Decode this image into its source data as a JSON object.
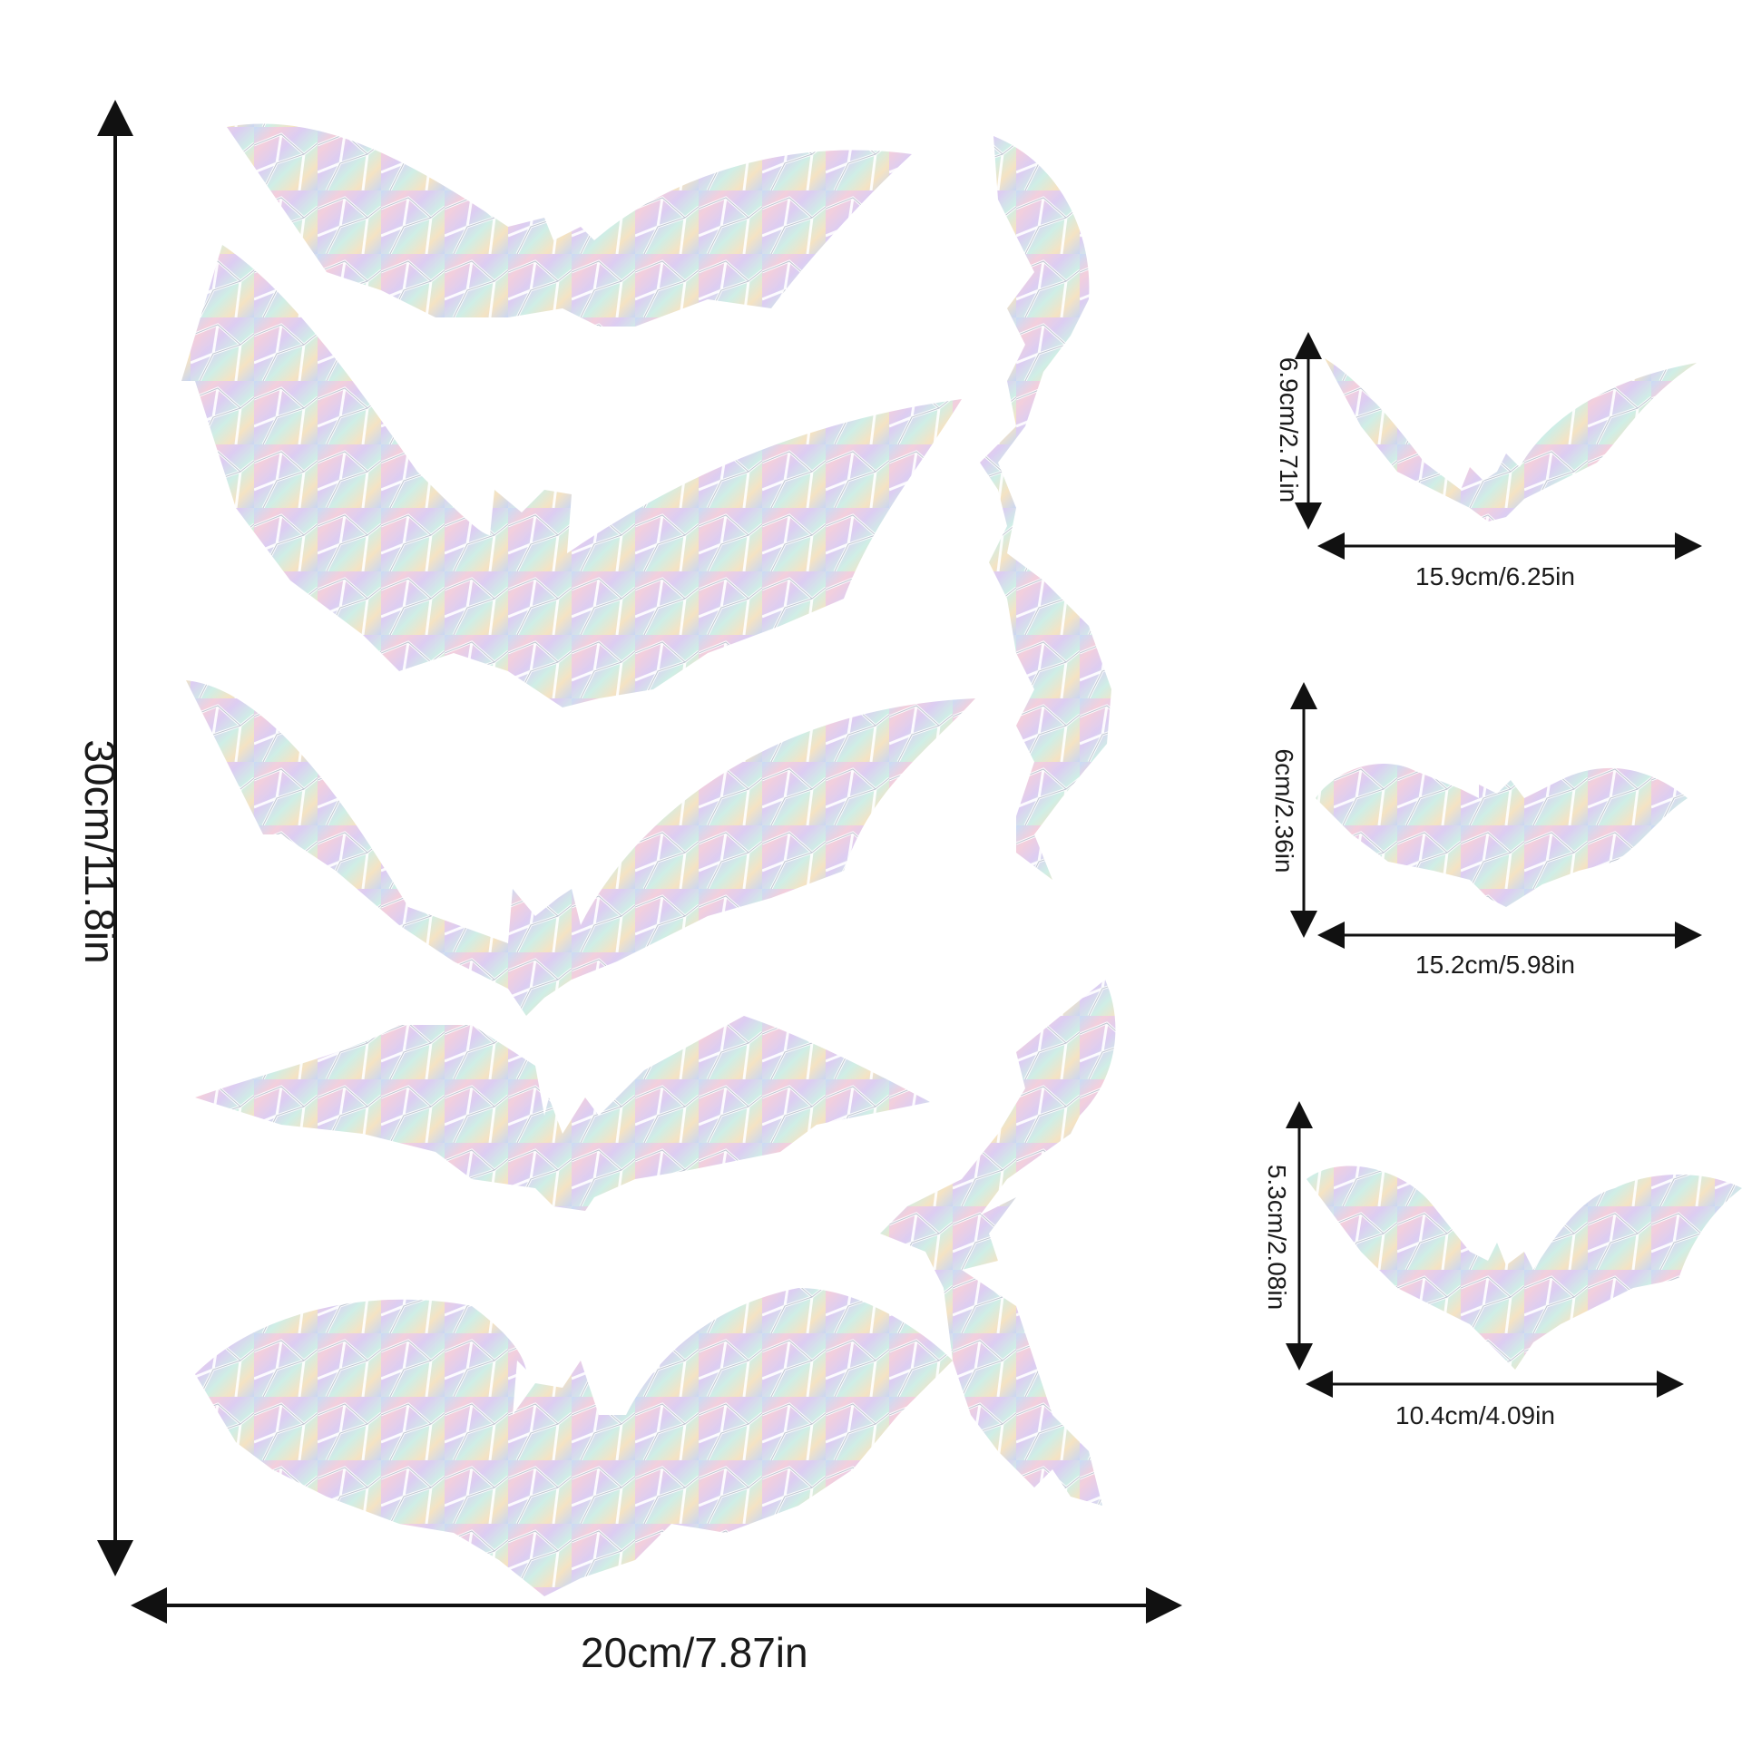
{
  "sheet": {
    "width_label": "20cm/7.87in",
    "height_label": "30cm/11.8in"
  },
  "bat_sizes": [
    {
      "height_label": "6.9cm/2.71in",
      "width_label": "15.9cm/6.25in"
    },
    {
      "height_label": "6cm/2.36in",
      "width_label": "15.2cm/5.98in"
    },
    {
      "height_label": "5.3cm/2.08in",
      "width_label": "10.4cm/4.09in"
    }
  ],
  "colors": {
    "arrow": "#111111",
    "iridescent": [
      "#bcd7f2",
      "#f6c9d9",
      "#d9c7f0",
      "#c9efe4",
      "#f7e6bf",
      "#e8e8ee"
    ],
    "crack": "#ffffff"
  }
}
